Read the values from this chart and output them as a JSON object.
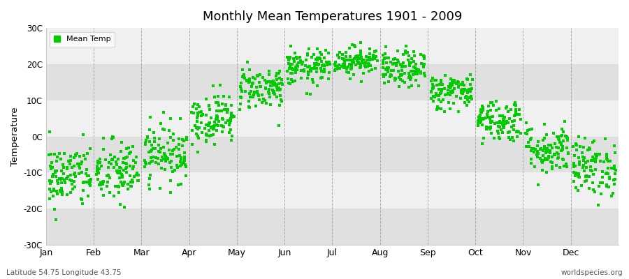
{
  "title": "Monthly Mean Temperatures 1901 - 2009",
  "ylabel": "Temperature",
  "subtitle_left": "Latitude 54.75 Longitude 43.75",
  "subtitle_right": "worldspecies.org",
  "legend_label": "Mean Temp",
  "marker_color": "#00cc00",
  "background_color": "#f0f0f0",
  "band_color_light": "#f0f0f0",
  "band_color_dark": "#e0e0e0",
  "grid_color": "#ffffff",
  "yticks": [
    -30,
    -20,
    -10,
    0,
    10,
    20,
    30
  ],
  "ytick_labels": [
    "-30C",
    "-20C",
    "-10C",
    "0C",
    "10C",
    "20C",
    "30C"
  ],
  "ylim": [
    -30,
    30
  ],
  "months": [
    "Jan",
    "Feb",
    "Mar",
    "Apr",
    "May",
    "Jun",
    "Jul",
    "Aug",
    "Sep",
    "Oct",
    "Nov",
    "Dec"
  ],
  "mean_temps": [
    -11.0,
    -10.0,
    -4.5,
    5.0,
    13.5,
    19.0,
    21.0,
    18.5,
    12.5,
    4.5,
    -3.5,
    -8.5
  ],
  "std_temps": [
    4.5,
    4.5,
    4.0,
    3.5,
    3.0,
    2.5,
    2.0,
    2.5,
    2.5,
    3.0,
    3.5,
    4.0
  ],
  "n_years": 109,
  "seed": 42
}
